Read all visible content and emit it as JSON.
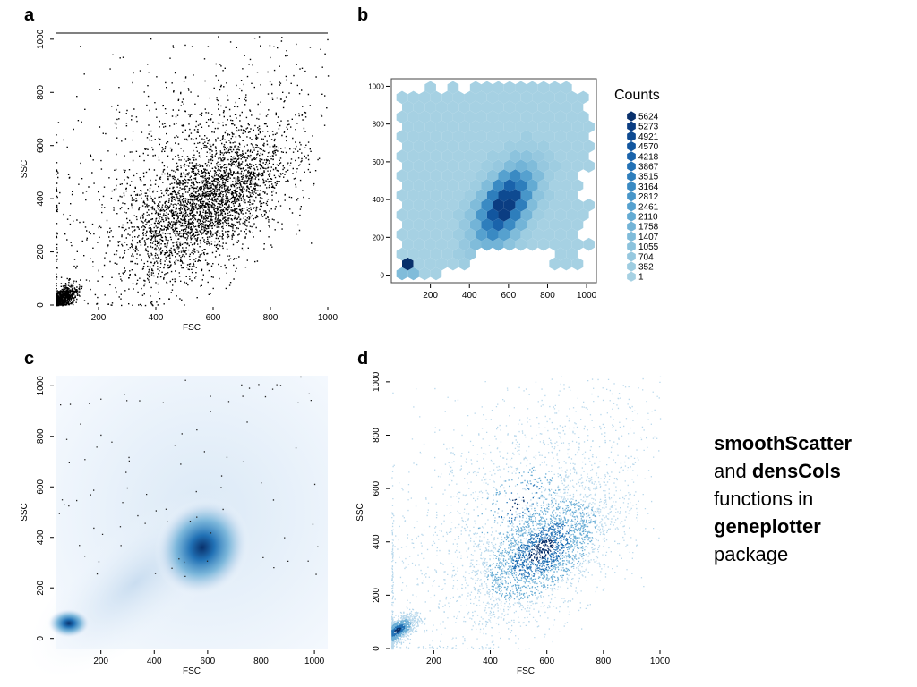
{
  "panels": [
    {
      "letter": "a",
      "chart_data": {
        "type": "scatter",
        "xlabel": "FSC",
        "ylabel": "SSC",
        "xlim": [
          50,
          1000
        ],
        "ylim": [
          0,
          1023
        ],
        "xticks": [
          200,
          400,
          600,
          800,
          1000
        ],
        "yticks": [
          0,
          200,
          400,
          600,
          800,
          1000
        ],
        "point_color": "#000000",
        "clusters": [
          {
            "center": [
              60,
              20
            ],
            "spread": [
              30,
              25
            ],
            "weight": 0.12
          },
          {
            "center": [
              570,
              380
            ],
            "spread": [
              140,
              150
            ],
            "weight": 0.78
          },
          {
            "center": [
              500,
              550
            ],
            "spread": [
              300,
              300
            ],
            "weight": 0.1
          }
        ]
      }
    },
    {
      "letter": "b",
      "chart_data": {
        "type": "heatmap",
        "subtype": "hexbin",
        "xlabel": "",
        "ylabel": "",
        "xlim": [
          0,
          1050
        ],
        "ylim": [
          -40,
          1040
        ],
        "xticks": [
          200,
          400,
          600,
          800,
          1000
        ],
        "yticks": [
          0,
          200,
          400,
          600,
          800,
          1000
        ],
        "legend": {
          "title": "Counts",
          "position": "right",
          "levels": [
            "5624",
            "5273",
            "4921",
            "4570",
            "4218",
            "3867",
            "3515",
            "3164",
            "2812",
            "2461",
            "2110",
            "1758",
            "1407",
            "1055",
            "704",
            "352",
            "1"
          ],
          "colors": [
            "#08306b",
            "#0b3d82",
            "#0e4a91",
            "#12569f",
            "#1a63ab",
            "#2371b5",
            "#2e7ebc",
            "#3a8ac3",
            "#4896c9",
            "#56a1cf",
            "#64abd3",
            "#73b4d7",
            "#80bcda",
            "#8cc3dd",
            "#96c8df",
            "#9ecde1",
            "#a6d1e3"
          ]
        },
        "background_level_color": "#9ecae1",
        "density_center": [
          580,
          370
        ],
        "density_spread": [
          100,
          120
        ],
        "corner_hot_bin": [
          70,
          45
        ]
      }
    },
    {
      "letter": "c",
      "chart_data": {
        "type": "heatmap",
        "subtype": "smoothScatter",
        "xlabel": "FSC",
        "ylabel": "SSC",
        "xlim": [
          30,
          1050
        ],
        "ylim": [
          -40,
          1040
        ],
        "xticks": [
          200,
          400,
          600,
          800,
          1000
        ],
        "yticks": [
          0,
          200,
          400,
          600,
          800,
          1000
        ],
        "colors": [
          "#f5f9fe",
          "#c6dbef",
          "#6baed6",
          "#2171b5",
          "#08306b"
        ],
        "density_peaks": [
          {
            "center": [
              580,
              360
            ],
            "spread": [
              120,
              140
            ]
          },
          {
            "center": [
              80,
              60
            ],
            "spread": [
              50,
              45
            ]
          }
        ]
      }
    },
    {
      "letter": "d",
      "chart_data": {
        "type": "scatter",
        "subtype": "densCols",
        "xlabel": "FSC",
        "ylabel": "SSC",
        "xlim": [
          50,
          1000
        ],
        "ylim": [
          0,
          1023
        ],
        "xticks": [
          200,
          400,
          600,
          800,
          1000
        ],
        "yticks": [
          0,
          200,
          400,
          600,
          800,
          1000
        ],
        "colors": [
          "#b8d8ec",
          "#6baed6",
          "#2171b5",
          "#08306b"
        ],
        "clusters": [
          {
            "center": [
              70,
              70
            ],
            "spread": [
              35,
              30
            ],
            "weight": 0.1
          },
          {
            "center": [
              580,
              370
            ],
            "spread": [
              130,
              140
            ],
            "weight": 0.75
          },
          {
            "center": [
              500,
              550
            ],
            "spread": [
              300,
              300
            ],
            "weight": 0.15
          }
        ]
      }
    }
  ],
  "caption": {
    "line1": "smoothScatter",
    "line2_plain": "and ",
    "line2_bold": "densCols",
    "line3": "functions in",
    "line4": "geneplotter",
    "line5": "package"
  }
}
